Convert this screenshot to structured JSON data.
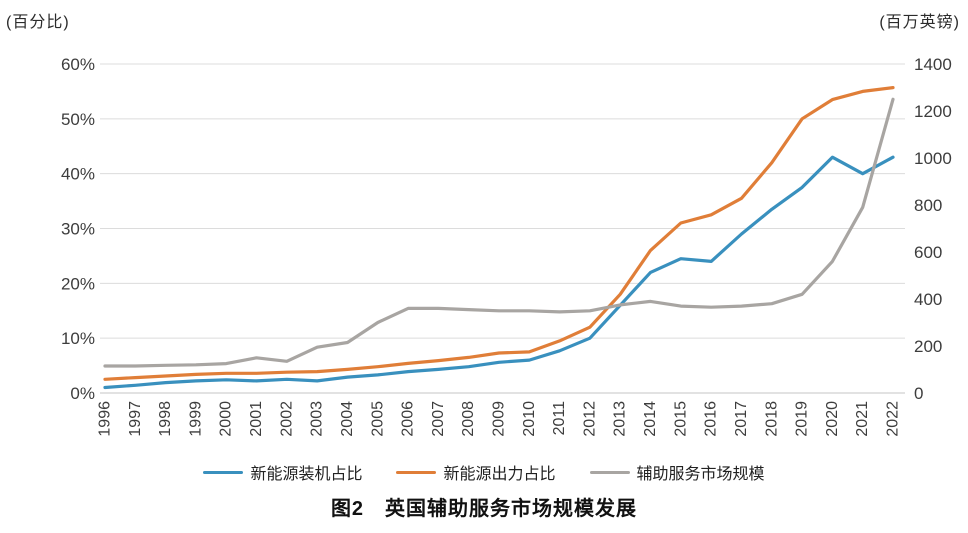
{
  "figure": {
    "caption": "图2　英国辅助服务市场规模发展",
    "left_unit_label": "(百分比)",
    "right_unit_label": "(百万英镑)"
  },
  "chart_data": {
    "type": "line",
    "title": "图2 英国辅助服务市场规模发展",
    "grid": true,
    "legend_position": "bottom",
    "categories": [
      1996,
      1997,
      1998,
      1999,
      2000,
      2001,
      2002,
      2003,
      2004,
      2005,
      2006,
      2007,
      2008,
      2009,
      2010,
      2011,
      2012,
      2013,
      2014,
      2015,
      2016,
      2017,
      2018,
      2019,
      2020,
      2021,
      2022
    ],
    "left_axis": {
      "label": "(百分比)",
      "min": 0,
      "max": 60,
      "step": 10,
      "ticks": [
        "0%",
        "10%",
        "20%",
        "30%",
        "40%",
        "50%",
        "60%"
      ]
    },
    "right_axis": {
      "label": "(百万英镑)",
      "min": 0,
      "max": 1400,
      "step": 200,
      "ticks": [
        "0",
        "200",
        "400",
        "600",
        "800",
        "1000",
        "1200",
        "1400"
      ]
    },
    "series": [
      {
        "id": "capacity-share",
        "name": "新能源装机占比",
        "axis": "left",
        "color": "#3990BE",
        "values": [
          1.0,
          1.4,
          1.9,
          2.2,
          2.4,
          2.2,
          2.5,
          2.2,
          2.9,
          3.3,
          3.9,
          4.3,
          4.8,
          5.6,
          6.0,
          7.7,
          10.0,
          16.0,
          22.0,
          24.5,
          24.0,
          29.0,
          33.5,
          37.5,
          43.0,
          40.0,
          43.0
        ]
      },
      {
        "id": "output-share",
        "name": "新能源出力占比",
        "axis": "left",
        "color": "#E07E38",
        "values": [
          2.5,
          2.8,
          3.1,
          3.4,
          3.6,
          3.6,
          3.8,
          3.9,
          4.3,
          4.8,
          5.4,
          5.9,
          6.5,
          7.3,
          7.5,
          9.5,
          12.0,
          18.0,
          26.0,
          31.0,
          32.5,
          35.5,
          42.0,
          50.0,
          53.5,
          55.0,
          55.7
        ]
      },
      {
        "id": "market-size",
        "name": "辅助服务市场规模",
        "axis": "right",
        "color": "#A8A5A2",
        "values": [
          115,
          115,
          118,
          120,
          125,
          150,
          135,
          195,
          215,
          300,
          360,
          360,
          355,
          350,
          350,
          345,
          350,
          375,
          390,
          370,
          365,
          370,
          380,
          420,
          560,
          790,
          1250
        ]
      }
    ],
    "style": {
      "gridline_color": "#DCDCDC",
      "baseline_color": "#C6C6C6",
      "tick_label_color": "#3d3d3d",
      "line_width": 3.2
    }
  }
}
